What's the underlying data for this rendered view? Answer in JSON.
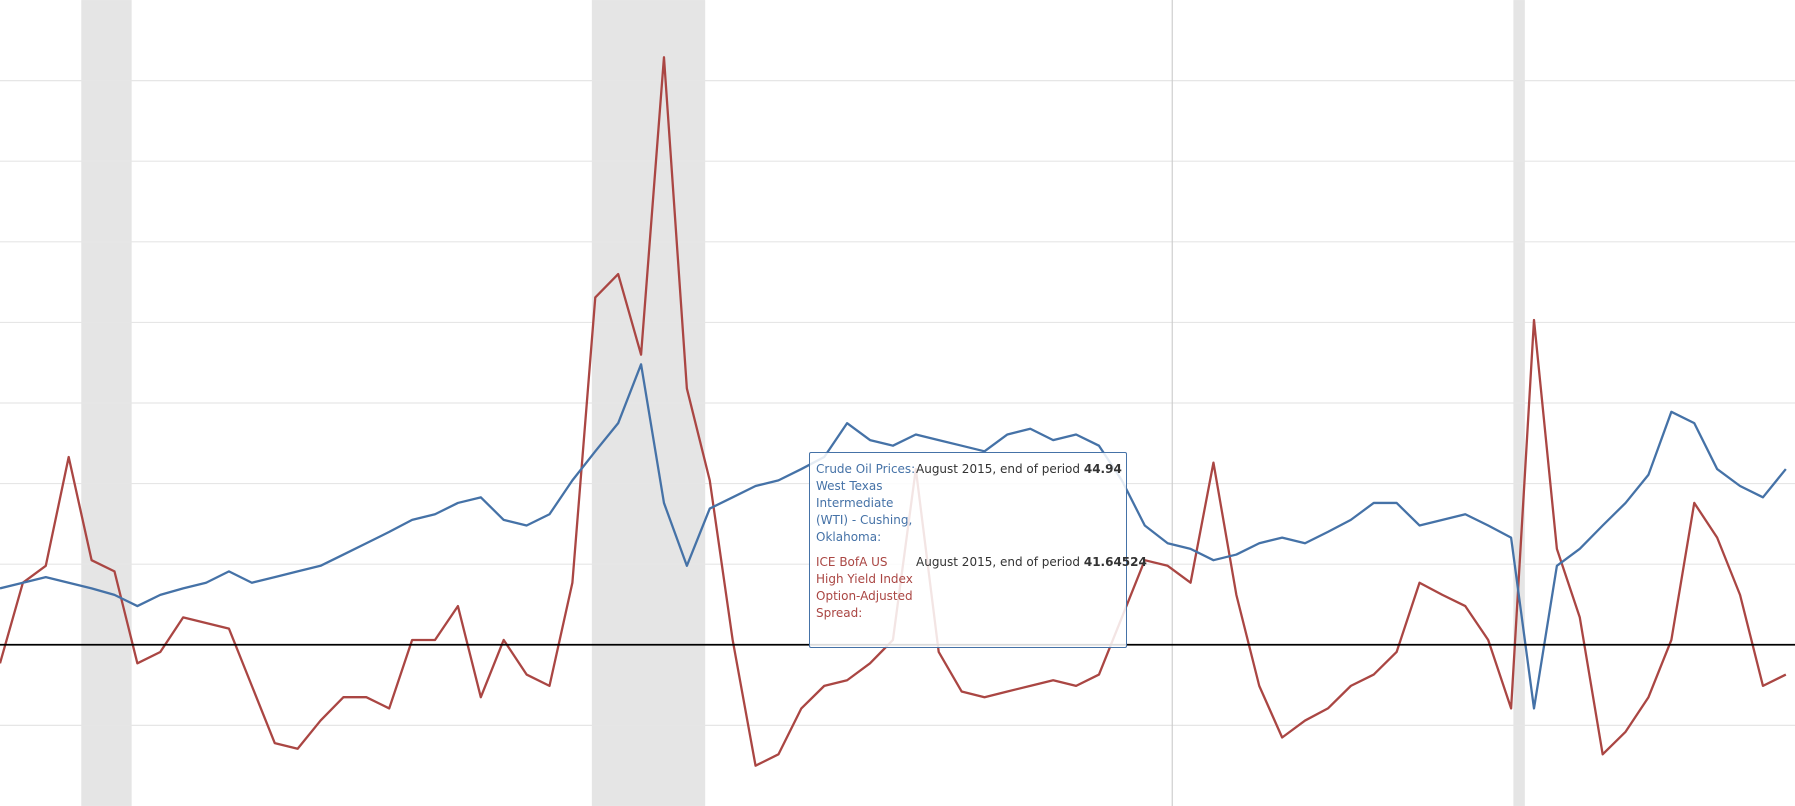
{
  "chart_data": {
    "type": "line",
    "x": [
      0,
      1,
      2,
      3,
      4,
      5,
      6,
      7,
      8,
      9,
      10,
      11,
      12,
      13,
      14,
      15,
      16,
      17,
      18,
      19,
      20,
      21,
      22,
      23,
      24,
      25,
      26,
      27,
      28,
      29,
      30,
      31,
      32,
      33,
      34,
      35,
      36,
      37,
      38,
      39,
      40,
      41,
      42,
      43,
      44,
      45,
      46,
      47,
      48,
      49,
      50,
      51,
      52,
      53,
      54,
      55,
      56,
      57,
      58,
      59,
      60,
      61,
      62,
      63,
      64,
      65,
      66,
      67,
      68,
      69,
      70,
      71,
      72,
      73,
      74,
      75,
      76,
      77,
      78
    ],
    "xlim": [
      0,
      78.4
    ],
    "ylim": [
      -2,
      8
    ],
    "yticks": [
      -1,
      0,
      1,
      2,
      3,
      4,
      5,
      6,
      7
    ],
    "grid": true,
    "reference_line": 0,
    "recessions": [
      [
        3.55,
        5.75
      ],
      [
        25.85,
        30.8
      ],
      [
        66.1,
        66.6
      ]
    ],
    "cursor_x": 51.2,
    "series": [
      {
        "color": "#4572a7",
        "values": [
          0.7,
          0.77,
          0.84,
          0.77,
          0.7,
          0.62,
          0.48,
          0.62,
          0.7,
          0.77,
          0.91,
          0.77,
          0.84,
          0.91,
          0.98,
          1.12,
          1.26,
          1.4,
          1.55,
          1.62,
          1.76,
          1.83,
          1.55,
          1.48,
          1.62,
          2.04,
          2.4,
          2.75,
          3.48,
          1.76,
          0.98,
          1.69,
          1.83,
          1.97,
          2.04,
          2.18,
          2.33,
          2.75,
          2.54,
          2.47,
          2.61,
          2.54,
          2.47,
          2.4,
          2.61,
          2.68,
          2.54,
          2.61,
          2.47,
          2.04,
          1.48,
          1.26,
          1.19,
          1.05,
          1.12,
          1.26,
          1.33,
          1.26,
          1.4,
          1.55,
          1.76,
          1.76,
          1.48,
          1.55,
          1.62,
          1.48,
          1.33,
          -0.79,
          0.98,
          1.19,
          1.48,
          1.76,
          2.11,
          2.89,
          2.75,
          2.18,
          1.97,
          1.83,
          2.18
        ]
      },
      {
        "color": "#aa4643",
        "values": [
          -0.23,
          0.77,
          0.98,
          2.33,
          1.05,
          0.91,
          -0.23,
          -0.09,
          0.34,
          0.27,
          0.2,
          -0.51,
          -1.22,
          -1.29,
          -0.94,
          -0.65,
          -0.65,
          -0.79,
          0.06,
          0.06,
          0.48,
          -0.65,
          0.06,
          -0.37,
          -0.51,
          0.77,
          4.31,
          4.6,
          3.6,
          7.29,
          3.18,
          2.04,
          0.06,
          -1.5,
          -1.36,
          -0.79,
          -0.51,
          -0.44,
          -0.23,
          0.06,
          2.18,
          -0.09,
          -0.58,
          -0.65,
          -0.58,
          -0.51,
          -0.44,
          -0.51,
          -0.37,
          0.34,
          1.05,
          0.98,
          0.77,
          2.26,
          0.62,
          -0.51,
          -1.15,
          -0.94,
          -0.79,
          -0.51,
          -0.37,
          -0.09,
          0.77,
          0.62,
          0.48,
          0.06,
          -0.79,
          4.03,
          1.19,
          0.34,
          -1.36,
          -1.08,
          -0.65,
          0.06,
          1.76,
          1.33,
          0.62,
          -0.51,
          -0.37
        ]
      }
    ],
    "tooltip": [
      {
        "label": "Crude Oil Prices: West Texas Intermediate (WTI) - Cushing, Oklahoma:",
        "date": "August 2015, end of period",
        "value": "44.94"
      },
      {
        "label": "ICE BofA US High Yield Index Option-Adjusted Spread:",
        "date": "August 2015, end of period",
        "value": "41.64524"
      }
    ]
  }
}
